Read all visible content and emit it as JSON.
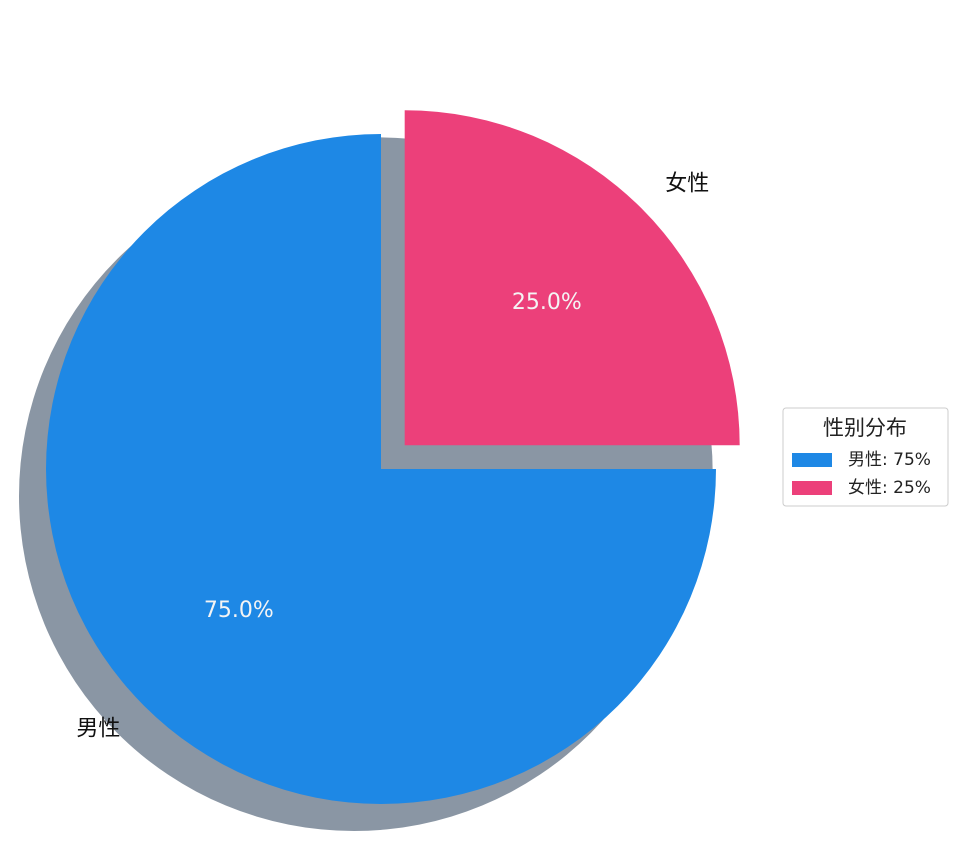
{
  "chart_data": {
    "type": "pie",
    "categories": [
      "男性",
      "女性"
    ],
    "values": [
      75,
      25
    ],
    "value_labels": [
      "75.0%",
      "25.0%"
    ],
    "colors": [
      "#1e88e5",
      "#ec407a"
    ],
    "explode": [
      0,
      0.1
    ],
    "shadow": true,
    "legend": {
      "title": "性别分布",
      "labels": [
        "男性: 75%",
        "女性: 25%"
      ],
      "position": "right"
    }
  }
}
